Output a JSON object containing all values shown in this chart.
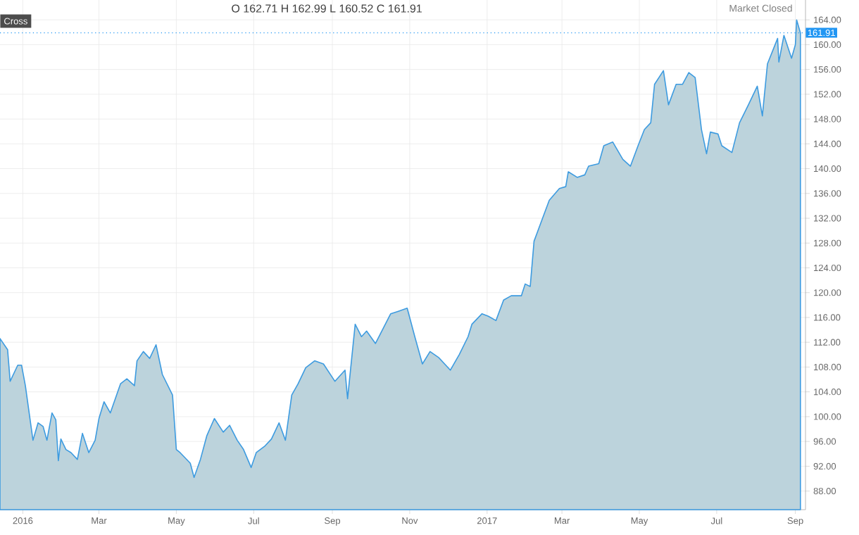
{
  "chart_data": {
    "type": "area",
    "annotations": [
      "Cross",
      "O 162.71  H 162.99  L 160.52  C 161.91",
      "Market Closed"
    ],
    "series": [
      {
        "color": "#3d9be0",
        "x": [
          "2015-12-14",
          "2015-12-20",
          "2015-12-22",
          "2015-12-28",
          "2015-12-31",
          "2016-01-03",
          "2016-01-09",
          "2016-01-13",
          "2016-01-17",
          "2016-01-20",
          "2016-01-24",
          "2016-01-27",
          "2016-01-29",
          "2016-01-31",
          "2016-02-04",
          "2016-02-08",
          "2016-02-13",
          "2016-02-17",
          "2016-02-22",
          "2016-02-27",
          "2016-03-01",
          "2016-03-05",
          "2016-03-10",
          "2016-03-18",
          "2016-03-23",
          "2016-03-29",
          "2016-03-31",
          "2016-04-05",
          "2016-04-10",
          "2016-04-15",
          "2016-04-20",
          "2016-04-28",
          "2016-05-01",
          "2016-05-04",
          "2016-05-12",
          "2016-05-15",
          "2016-05-20",
          "2016-05-25",
          "2016-05-31",
          "2016-06-07",
          "2016-06-12",
          "2016-06-18",
          "2016-06-23",
          "2016-06-29",
          "2016-07-03",
          "2016-07-10",
          "2016-07-15",
          "2016-07-21",
          "2016-07-26",
          "2016-07-31",
          "2016-08-05",
          "2016-08-11",
          "2016-08-18",
          "2016-08-25",
          "2016-09-03",
          "2016-09-11",
          "2016-09-13",
          "2016-09-19",
          "2016-09-24",
          "2016-09-28",
          "2016-10-05",
          "2016-10-17",
          "2016-10-23",
          "2016-10-30",
          "2016-11-05",
          "2016-11-11",
          "2016-11-17",
          "2016-11-24",
          "2016-12-03",
          "2016-12-10",
          "2016-12-17",
          "2016-12-20",
          "2016-12-28",
          "2017-01-02",
          "2017-01-08",
          "2017-01-14",
          "2017-01-20",
          "2017-01-28",
          "2017-01-31",
          "2017-02-04",
          "2017-02-07",
          "2017-02-13",
          "2017-02-19",
          "2017-02-27",
          "2017-03-04",
          "2017-03-06",
          "2017-03-13",
          "2017-03-19",
          "2017-03-22",
          "2017-03-30",
          "2017-04-03",
          "2017-04-10",
          "2017-04-18",
          "2017-04-24",
          "2017-04-30",
          "2017-05-05",
          "2017-05-10",
          "2017-05-13",
          "2017-05-20",
          "2017-05-24",
          "2017-05-30",
          "2017-06-04",
          "2017-06-09",
          "2017-06-14",
          "2017-06-19",
          "2017-06-23",
          "2017-06-26",
          "2017-07-02",
          "2017-07-05",
          "2017-07-13",
          "2017-07-19",
          "2017-07-26",
          "2017-08-02",
          "2017-08-06",
          "2017-08-10",
          "2017-08-18",
          "2017-08-19",
          "2017-08-23",
          "2017-08-29",
          "2017-09-01",
          "2017-09-02",
          "2017-09-05"
        ],
        "values": [
          112.6,
          110.8,
          105.7,
          108.3,
          108.3,
          105,
          96.2,
          99,
          98.4,
          96.2,
          100.6,
          99.5,
          92.9,
          96.4,
          94.7,
          94.2,
          93.1,
          97.3,
          94.2,
          96.2,
          99.7,
          102.4,
          100.6,
          105.3,
          106.1,
          105,
          109,
          110.5,
          109.4,
          111.6,
          106.8,
          103.5,
          94.7,
          94.2,
          92.5,
          90.2,
          93.1,
          96.9,
          99.7,
          97.5,
          98.6,
          96.2,
          94.7,
          91.8,
          94.2,
          95.3,
          96.4,
          99,
          96.2,
          103.5,
          105.3,
          107.9,
          109,
          108.5,
          105.7,
          107.5,
          102.9,
          114.9,
          112.9,
          113.8,
          111.8,
          116.6,
          117,
          117.5,
          112.9,
          108.5,
          110.5,
          109.5,
          107.5,
          110,
          112.9,
          114.9,
          116.6,
          116.2,
          115.5,
          118.8,
          119.5,
          119.5,
          121.4,
          121,
          128.3,
          131.6,
          134.9,
          136.8,
          137.1,
          139.5,
          138.6,
          139,
          140.4,
          140.8,
          143.7,
          144.3,
          141.5,
          140.4,
          143.7,
          146.3,
          147.4,
          153.6,
          155.8,
          150.3,
          153.6,
          153.6,
          155.5,
          154.7,
          146.3,
          142.4,
          145.9,
          145.6,
          143.7,
          142.6,
          147.4,
          150.3,
          153.3,
          148.5,
          156.9,
          161,
          157.2,
          161.5,
          157.8,
          160,
          164,
          161.9
        ]
      }
    ],
    "xlim": [
      "2015-12-14",
      "2017-09-09"
    ],
    "xticks": [
      {
        "value": "2016-01-01",
        "label": "2016"
      },
      {
        "value": "2016-03-01",
        "label": "Mar"
      },
      {
        "value": "2016-05-01",
        "label": "May"
      },
      {
        "value": "2016-07-01",
        "label": "Jul"
      },
      {
        "value": "2016-09-01",
        "label": "Sep"
      },
      {
        "value": "2016-11-01",
        "label": "Nov"
      },
      {
        "value": "2017-01-01",
        "label": "2017"
      },
      {
        "value": "2017-03-01",
        "label": "Mar"
      },
      {
        "value": "2017-05-01",
        "label": "May"
      },
      {
        "value": "2017-07-01",
        "label": "Jul"
      },
      {
        "value": "2017-09-01",
        "label": "Sep"
      }
    ],
    "ylim": [
      85,
      167.2
    ],
    "yticks": [
      {
        "value": 88,
        "label": "88.00"
      },
      {
        "value": 92,
        "label": "92.00"
      },
      {
        "value": 96,
        "label": "96.00"
      },
      {
        "value": 100,
        "label": "100.00"
      },
      {
        "value": 104,
        "label": "104.00"
      },
      {
        "value": 108,
        "label": "108.00"
      },
      {
        "value": 112,
        "label": "112.00"
      },
      {
        "value": 116,
        "label": "116.00"
      },
      {
        "value": 120,
        "label": "120.00"
      },
      {
        "value": 124,
        "label": "124.00"
      },
      {
        "value": 128,
        "label": "128.00"
      },
      {
        "value": 132,
        "label": "132.00"
      },
      {
        "value": 136,
        "label": "136.00"
      },
      {
        "value": 140,
        "label": "140.00"
      },
      {
        "value": 144,
        "label": "144.00"
      },
      {
        "value": 148,
        "label": "148.00"
      },
      {
        "value": 152,
        "label": "152.00"
      },
      {
        "value": 156,
        "label": "156.00"
      },
      {
        "value": 160,
        "label": "160.00"
      },
      {
        "value": 164,
        "label": "164.00"
      }
    ],
    "ref_lines": [
      {
        "axis": "y",
        "value": 161.91,
        "label": "161.91",
        "color": "#2196f3",
        "line_style": "dotted"
      }
    ],
    "grid": true
  }
}
